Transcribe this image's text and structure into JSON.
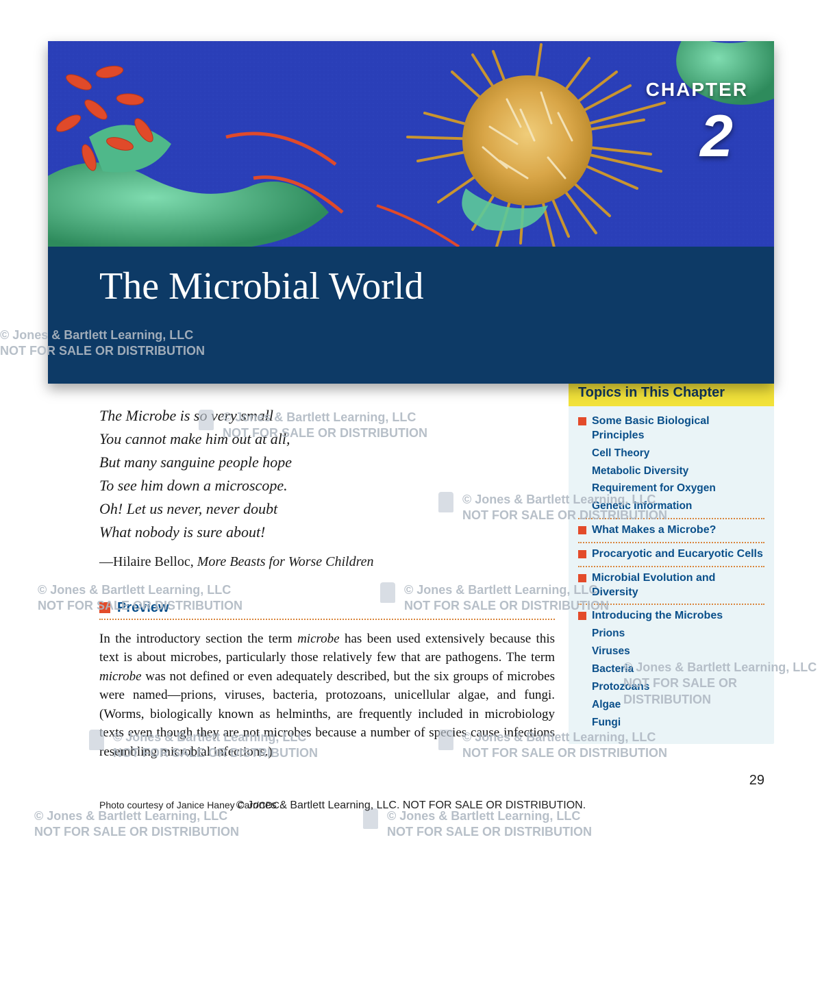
{
  "chapter": {
    "label": "CHAPTER",
    "number": "2",
    "title": "The Microbial World"
  },
  "hero_art": {
    "background": "#2a3fb8",
    "cell_main": "#d9a648",
    "cell_green": "#4fb88a",
    "cell_green_dark": "#2e8b5c",
    "rods": "#e04a2a",
    "rods_dark": "#b5361a"
  },
  "poem": {
    "lines": [
      "The Microbe is so very small",
      "You cannot make him out at all,",
      "But many sanguine people hope",
      "To see him down a microscope.",
      "Oh! Let us never, never doubt",
      "What nobody is sure about!"
    ],
    "author": "—Hilaire Belloc, ",
    "work": "More Beasts for Worse Children"
  },
  "preview": {
    "heading": "Preview",
    "text_a": "In the introductory section the term ",
    "microbe1": "microbe",
    "text_b": " has been used extensively because this text is about microbes, particularly those relatively few that are pathogens. The term ",
    "microbe2": "microbe",
    "text_c": " was not defined or even adequately described, but the six groups of microbes were named—prions, viruses, bacteria, protozoans, unicellular algae, and fungi. (Worms, biologically known as helminths, are frequently included in microbiology texts even though they are not microbes because a number of species cause infections resembling microbial infections.)"
  },
  "topics": {
    "header": "Topics in This Chapter",
    "sections": [
      {
        "title": "Some Basic Biological Principles",
        "subs": [
          "Cell Theory",
          "Metabolic Diversity",
          "Requirement for Oxygen",
          "Genetic Information"
        ]
      },
      {
        "title": "What Makes a Microbe?",
        "subs": []
      },
      {
        "title": "Procaryotic and Eucaryotic Cells",
        "subs": []
      },
      {
        "title": "Microbial Evolution and Diversity",
        "subs": []
      },
      {
        "title": "Introducing the Microbes",
        "subs": [
          "Prions",
          "Viruses",
          "Bacteria",
          "Protozoans",
          "Algae",
          "Fungi"
        ]
      }
    ]
  },
  "watermark": {
    "line1": "© Jones & Bartlett Learning, LLC",
    "line2": "NOT FOR SALE OR DISTRIBUTION"
  },
  "photo_credit": "Photo courtesy of Janice Haney Carr/CDC.",
  "page_number": "29",
  "footer": "© Jones & Bartlett Learning, LLC.  NOT FOR SALE OR DISTRIBUTION."
}
